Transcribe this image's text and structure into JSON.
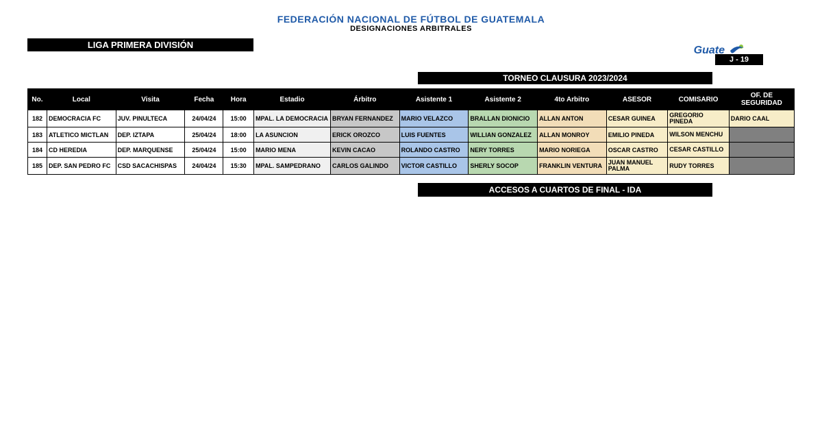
{
  "header": {
    "title1": "FEDERACIÓN NACIONAL DE FÚTBOL DE GUATEMALA",
    "title2": "DESIGNACIONES ARBITRALES",
    "logo_text": "Guate"
  },
  "bars": {
    "liga": "LIGA PRIMERA DIVISIÓN",
    "jornada": "J  -  19",
    "torneo": "TORNEO CLAUSURA  2023/2024",
    "acceso": "ACCESOS A CUARTOS DE FINAL     -    IDA"
  },
  "table": {
    "columns": {
      "no": "No.",
      "local": "Local",
      "visita": "Visita",
      "fecha": "Fecha",
      "hora": "Hora",
      "estadio": "Estadio",
      "arbitro": "Árbitro",
      "asistente1": "Asistente 1",
      "asistente2": "Asistente 2",
      "cuarto": "4to Arbitro",
      "asesor": "ASESOR",
      "comisario": "COMISARIO",
      "seguridad": "OF. DE SEGURIDAD"
    },
    "rows": [
      {
        "no": "182",
        "local": "DEMOCRACIA FC",
        "visita": "JUV. PINULTECA",
        "fecha": "24/04/24",
        "hora": "15:00",
        "estadio": "MPAL. LA DEMOCRACIA",
        "arbitro": "BRYAN FERNANDEZ",
        "asis1": "MARIO VELAZCO",
        "asis2": "BRALLAN DIONICIO",
        "cuarto": "ALLAN ANTON",
        "asesor": "CESAR GUINEA",
        "comisario": "GREGORIO PINEDA",
        "seguridad": "DARIO CAAL",
        "seguridad_filled": true
      },
      {
        "no": "183",
        "local": "ATLETICO MICTLAN",
        "visita": "DEP. IZTAPA",
        "fecha": "25/04/24",
        "hora": "18:00",
        "estadio": "LA ASUNCION",
        "arbitro": "ERICK OROZCO",
        "asis1": "LUIS FUENTES",
        "asis2": "WILLIAN GONZALEZ",
        "cuarto": "ALLAN MONROY",
        "asesor": "EMILIO PINEDA",
        "comisario": "WILSON MENCHU",
        "seguridad": "",
        "seguridad_filled": false
      },
      {
        "no": "184",
        "local": "CD HEREDIA",
        "visita": "DEP. MARQUENSE",
        "fecha": "25/04/24",
        "hora": "15:00",
        "estadio": "MARIO MENA",
        "arbitro": "KEVIN CACAO",
        "asis1": "ROLANDO CASTRO",
        "asis2": "NERY TORRES",
        "cuarto": "MARIO NORIEGA",
        "asesor": "OSCAR CASTRO",
        "comisario": "CESAR CASTILLO",
        "seguridad": "",
        "seguridad_filled": false
      },
      {
        "no": "185",
        "local": "DEP. SAN PEDRO FC",
        "visita": "CSD SACACHISPAS",
        "fecha": "24/04/24",
        "hora": "15:30",
        "estadio": "MPAL. SAMPEDRANO",
        "arbitro": "CARLOS GALINDO",
        "asis1": "VICTOR CASTILLO",
        "asis2": "SHERLY SOCOP",
        "cuarto": "FRANKLIN VENTURA",
        "asesor": "JUAN MANUEL PALMA",
        "comisario": "RUDY TORRES",
        "seguridad": "",
        "seguridad_filled": false
      }
    ]
  },
  "colors": {
    "header_blue": "#1f5aa8",
    "black": "#000000",
    "estadio_bg": "#f0f0f0",
    "arbitro_bg": "#c7c7c7",
    "asis1_bg": "#a9c5e8",
    "asis2_bg": "#b8d8b0",
    "cuarto_bg": "#f2ddb8",
    "asesor_bg": "#f7edc8",
    "seg_empty_bg": "#808080"
  }
}
